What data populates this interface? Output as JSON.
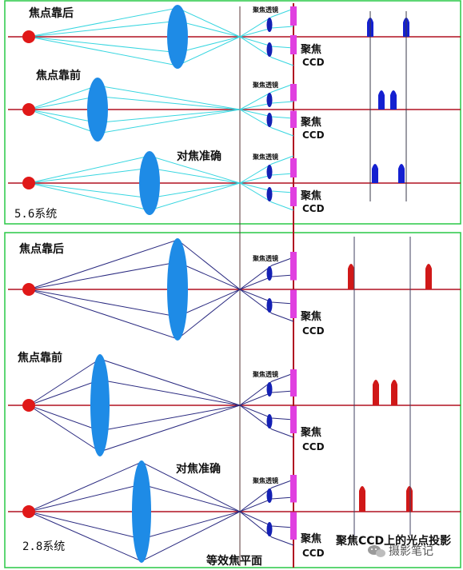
{
  "colors": {
    "panel_border": "#28c846",
    "axis_line": "#b01020",
    "source_dot": "#e01818",
    "main_lens": "#1e8be6",
    "relay_lens": "#1420b4",
    "ccd_bar": "#e040e0",
    "ray_top": "#38d6e0",
    "ray_bottom": "#2a2a80",
    "peak_top": "#1420d0",
    "peak_bottom": "#d01818",
    "guide_top": "#3a3a4a",
    "guide_bottom": "#404060"
  },
  "labels": {
    "focus_behind": "焦点靠后",
    "focus_front": "焦点靠前",
    "focus_accurate": "对焦准确",
    "relay_lens": "聚焦透镜",
    "ccd_line1": "聚焦",
    "ccd_line2": "CCD",
    "system_top": "5.6系统",
    "system_bottom": "2.8系统",
    "equivalent_plane": "等效焦平面",
    "ccd_projection": "聚焦CCD上的光点投影",
    "watermark": "摄影笔记",
    "watermark_icon": "chat-bubble-icon"
  }
}
